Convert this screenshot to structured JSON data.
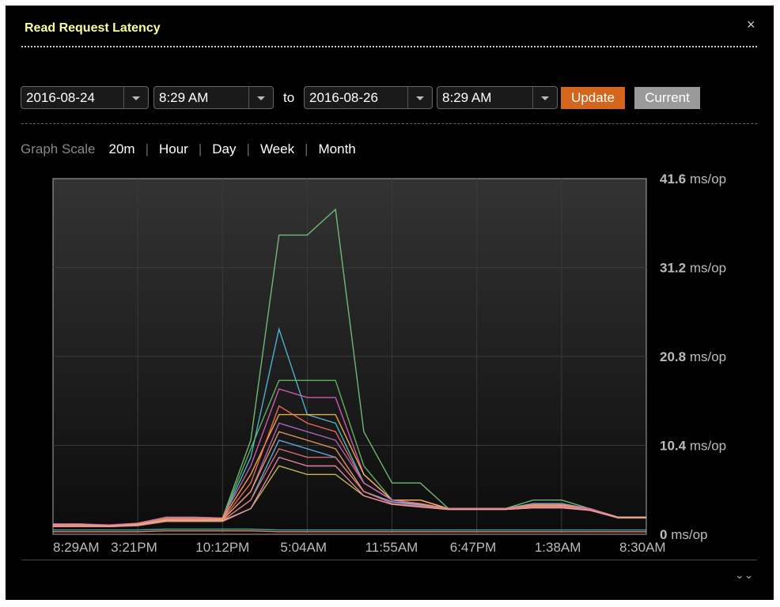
{
  "dialog": {
    "title": "Read Request Latency",
    "close_icon": "close-icon",
    "expand_icon": "double-chevron-down-icon"
  },
  "controls": {
    "start_date": "2016-08-24",
    "start_time": "8:29 AM",
    "to_label": "to",
    "end_date": "2016-08-26",
    "end_time": "8:29 AM",
    "update_label": "Update",
    "current_label": "Current",
    "update_color": "#d4651c",
    "current_color": "#9a9a9a"
  },
  "graph_scale": {
    "label": "Graph Scale",
    "options": [
      "20m",
      "Hour",
      "Day",
      "Week",
      "Month"
    ],
    "selected": "20m"
  },
  "chart_data": {
    "type": "line",
    "title": "",
    "x_tick_labels": [
      "8:29AM",
      "3:21PM",
      "10:12PM",
      "5:04AM",
      "11:55AM",
      "6:47PM",
      "1:38AM",
      "8:30AM"
    ],
    "y_ticks": [
      {
        "value": "41.6",
        "unit": "ms/op"
      },
      {
        "value": "31.2",
        "unit": "ms/op"
      },
      {
        "value": "20.8",
        "unit": "ms/op"
      },
      {
        "value": "10.4",
        "unit": "ms/op"
      },
      {
        "value": "0",
        "unit": "ms/op"
      }
    ],
    "ylim": [
      0,
      41.6
    ],
    "grid": true,
    "x_count": 22,
    "series": [
      {
        "color": "#7bc87e",
        "values": [
          1.2,
          1.2,
          1.0,
          1.3,
          2.0,
          2.0,
          1.9,
          11,
          35,
          35,
          38,
          12,
          6,
          6,
          3,
          3,
          3,
          4,
          4,
          3,
          2,
          2
        ]
      },
      {
        "color": "#4fc3d9",
        "values": [
          1.0,
          1.0,
          0.9,
          1.2,
          1.8,
          1.8,
          1.8,
          9,
          24,
          14,
          13,
          6,
          4,
          4,
          3,
          3,
          3,
          3.6,
          3.6,
          3,
          2,
          2
        ]
      },
      {
        "color": "#6abf69",
        "values": [
          1.1,
          1.1,
          1.0,
          1.2,
          1.9,
          1.9,
          1.8,
          10,
          18,
          18,
          18,
          8,
          4,
          4,
          3,
          3,
          3,
          3.5,
          3.5,
          3,
          2,
          2
        ]
      },
      {
        "color": "#e060c0",
        "values": [
          1.2,
          1.2,
          1.1,
          1.3,
          2.0,
          2.0,
          1.9,
          8,
          17,
          16,
          16,
          7,
          4,
          4,
          3,
          3,
          3,
          3.5,
          3.5,
          3,
          2,
          2
        ]
      },
      {
        "color": "#ffb74d",
        "values": [
          1.1,
          1.1,
          1.0,
          1.2,
          1.8,
          1.8,
          1.8,
          7,
          14,
          14,
          14,
          7,
          4,
          4,
          3,
          3,
          3,
          3.4,
          3.4,
          3,
          2,
          2
        ]
      },
      {
        "color": "#ff6f61",
        "values": [
          1.0,
          1.0,
          1.0,
          1.2,
          1.8,
          1.8,
          1.7,
          6,
          15,
          13,
          12,
          6,
          4,
          3.6,
          3,
          3,
          3,
          3.3,
          3.3,
          3,
          2,
          2
        ]
      },
      {
        "color": "#ba68c8",
        "values": [
          1.0,
          1.0,
          1.0,
          1.2,
          1.7,
          1.7,
          1.7,
          5,
          13,
          12,
          11,
          6,
          4,
          3.5,
          3,
          3,
          3,
          3.3,
          3.3,
          3,
          2,
          2
        ]
      },
      {
        "color": "#f4a460",
        "values": [
          1.1,
          1.0,
          1.0,
          1.2,
          1.7,
          1.7,
          1.7,
          5,
          12,
          11,
          10,
          5,
          3.8,
          3.5,
          3,
          3,
          3,
          3.3,
          3.3,
          2.9,
          2,
          2
        ]
      },
      {
        "color": "#64b5f6",
        "values": [
          1.0,
          1.0,
          0.9,
          1.1,
          1.6,
          1.6,
          1.6,
          4,
          11,
          10,
          9,
          5,
          3.8,
          3.4,
          3,
          3,
          3,
          3.2,
          3.2,
          2.9,
          2,
          2
        ]
      },
      {
        "color": "#e57373",
        "values": [
          1.0,
          1.0,
          0.9,
          1.1,
          1.6,
          1.6,
          1.6,
          4,
          10,
          9,
          9,
          5,
          3.6,
          3.3,
          3,
          3,
          3,
          3.2,
          3.2,
          2.9,
          2,
          2
        ]
      },
      {
        "color": "#d4c85a",
        "values": [
          0.9,
          0.9,
          0.9,
          1.1,
          1.6,
          1.6,
          1.6,
          3,
          8,
          7,
          7,
          4.5,
          3.5,
          3.2,
          2.9,
          2.9,
          2.9,
          3.1,
          3.1,
          2.8,
          2,
          2
        ]
      },
      {
        "color": "#f48fb1",
        "values": [
          0.9,
          0.9,
          0.9,
          1.0,
          1.5,
          1.5,
          1.5,
          3,
          9,
          8,
          8,
          4.5,
          3.5,
          3.2,
          2.9,
          2.9,
          2.9,
          3.1,
          3.1,
          2.8,
          1.9,
          1.9
        ]
      },
      {
        "color": "#4db6ac",
        "values": [
          0.5,
          0.5,
          0.5,
          0.5,
          0.6,
          0.6,
          0.6,
          0.6,
          0.5,
          0.5,
          0.5,
          0.5,
          0.5,
          0.5,
          0.5,
          0.5,
          0.5,
          0.5,
          0.5,
          0.5,
          0.5,
          0.5
        ]
      },
      {
        "color": "#ff8a65",
        "values": [
          0.3,
          0.3,
          0.3,
          0.3,
          0.4,
          0.4,
          0.4,
          0.4,
          0.3,
          0.3,
          0.3,
          0.3,
          0.3,
          0.3,
          0.3,
          0.3,
          0.3,
          0.3,
          0.3,
          0.3,
          0.3,
          0.3
        ]
      }
    ]
  }
}
